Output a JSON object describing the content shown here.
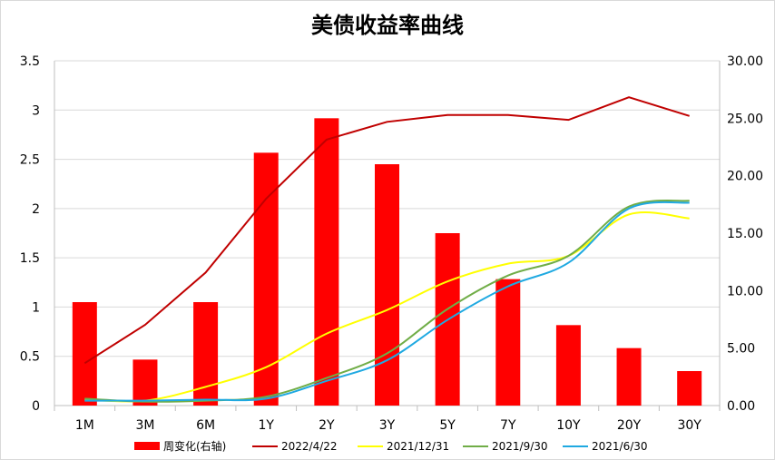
{
  "title": "美债收益率曲线",
  "chart_data": {
    "type": "bar+line",
    "categories": [
      "1M",
      "3M",
      "6M",
      "1Y",
      "2Y",
      "3Y",
      "5Y",
      "7Y",
      "10Y",
      "20Y",
      "30Y"
    ],
    "left_axis": {
      "min": 0,
      "max": 3.5,
      "ticks": [
        "0",
        "0.5",
        "1",
        "1.5",
        "2",
        "2.5",
        "3",
        "3.5"
      ]
    },
    "right_axis": {
      "min": 0,
      "max": 30,
      "ticks": [
        "0.00",
        "5.00",
        "10.00",
        "15.00",
        "20.00",
        "25.00",
        "30.00"
      ]
    },
    "grid": true,
    "legend_position": "bottom",
    "bars": {
      "name": "周变化(右轴)",
      "axis": "right",
      "color": "#ff0000",
      "values": [
        9,
        4,
        9,
        22,
        25,
        21,
        15,
        11,
        7,
        5,
        3
      ]
    },
    "series": [
      {
        "name": "2022/4/22",
        "axis": "left",
        "color": "#c00000",
        "smooth": false,
        "values": [
          0.43,
          0.82,
          1.35,
          2.1,
          2.7,
          2.88,
          2.95,
          2.95,
          2.9,
          3.13,
          2.94
        ]
      },
      {
        "name": "2021/12/31",
        "axis": "left",
        "color": "#ffff00",
        "smooth": true,
        "values": [
          0.06,
          0.05,
          0.19,
          0.39,
          0.73,
          0.97,
          1.26,
          1.44,
          1.52,
          1.94,
          1.9
        ]
      },
      {
        "name": "2021/9/30",
        "axis": "left",
        "color": "#70ad47",
        "smooth": true,
        "values": [
          0.07,
          0.04,
          0.05,
          0.09,
          0.28,
          0.53,
          0.98,
          1.32,
          1.52,
          2.02,
          2.08
        ]
      },
      {
        "name": "2021/6/30",
        "axis": "left",
        "color": "#1fa9e1",
        "smooth": true,
        "values": [
          0.05,
          0.05,
          0.06,
          0.07,
          0.25,
          0.46,
          0.87,
          1.21,
          1.45,
          2.0,
          2.06
        ]
      }
    ]
  }
}
